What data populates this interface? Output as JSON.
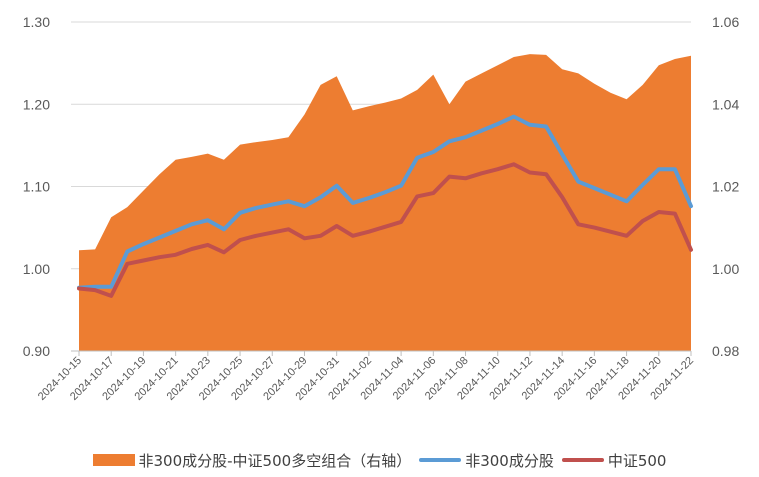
{
  "chart_data": {
    "type": "line",
    "title": "",
    "x": [
      "2024-10-15",
      "2024-10-16",
      "2024-10-17",
      "2024-10-18",
      "2024-10-19",
      "2024-10-20",
      "2024-10-21",
      "2024-10-22",
      "2024-10-23",
      "2024-10-24",
      "2024-10-25",
      "2024-10-26",
      "2024-10-27",
      "2024-10-28",
      "2024-10-29",
      "2024-10-30",
      "2024-10-31",
      "2024-11-01",
      "2024-11-02",
      "2024-11-03",
      "2024-11-04",
      "2024-11-05",
      "2024-11-06",
      "2024-11-07",
      "2024-11-08",
      "2024-11-09",
      "2024-11-10",
      "2024-11-11",
      "2024-11-12",
      "2024-11-13",
      "2024-11-14",
      "2024-11-15",
      "2024-11-16",
      "2024-11-17",
      "2024-11-18",
      "2024-11-19",
      "2024-11-20",
      "2024-11-21",
      "2024-11-22"
    ],
    "x_tick_labels": [
      "2024-10-15",
      "2024-10-17",
      "2024-10-19",
      "2024-10-21",
      "2024-10-23",
      "2024-10-25",
      "2024-10-27",
      "2024-10-29",
      "2024-10-31",
      "2024-11-02",
      "2024-11-04",
      "2024-11-06",
      "2024-11-08",
      "2024-11-10",
      "2024-11-12",
      "2024-11-14",
      "2024-11-16",
      "2024-11-18",
      "2024-11-20",
      "2024-11-22"
    ],
    "y_left": {
      "ylim": [
        0.9,
        1.3
      ],
      "ticks": [
        "0.90",
        "1.00",
        "1.10",
        "1.20",
        "1.30"
      ]
    },
    "y_right": {
      "ylim": [
        0.98,
        1.06
      ],
      "ticks": [
        "0.98",
        "1.00",
        "1.02",
        "1.04",
        "1.06"
      ]
    },
    "series": [
      {
        "name": "非300成分股-中证500多空组合（右轴）",
        "type": "area",
        "axis": "right",
        "color": "#ED7D31",
        "values": [
          1.0045,
          1.0047,
          1.0125,
          1.015,
          1.019,
          1.023,
          1.0265,
          1.0272,
          1.028,
          1.0265,
          1.0302,
          1.0308,
          1.0313,
          1.032,
          1.0375,
          1.0447,
          1.0468,
          1.0385,
          1.0395,
          1.0404,
          1.0414,
          1.0435,
          1.0472,
          1.04,
          1.0455,
          1.0475,
          1.0495,
          1.0515,
          1.0522,
          1.052,
          1.0485,
          1.0475,
          1.045,
          1.0428,
          1.0412,
          1.0447,
          1.0495,
          1.051,
          1.0518
        ]
      },
      {
        "name": "非300成分股",
        "type": "line",
        "axis": "left",
        "color": "#5B9BD5",
        "values": [
          0.977,
          0.978,
          0.978,
          1.021,
          1.03,
          1.038,
          1.046,
          1.054,
          1.059,
          1.048,
          1.068,
          1.074,
          1.078,
          1.082,
          1.076,
          1.087,
          1.101,
          1.08,
          1.086,
          1.093,
          1.101,
          1.135,
          1.142,
          1.155,
          1.16,
          1.168,
          1.176,
          1.185,
          1.175,
          1.173,
          1.139,
          1.106,
          1.098,
          1.09,
          1.082,
          1.102,
          1.121,
          1.121,
          1.076
        ]
      },
      {
        "name": "中证500",
        "type": "line",
        "axis": "left",
        "color": "#C0504D",
        "values": [
          0.976,
          0.974,
          0.967,
          1.006,
          1.01,
          1.014,
          1.017,
          1.024,
          1.029,
          1.02,
          1.035,
          1.04,
          1.044,
          1.048,
          1.037,
          1.04,
          1.052,
          1.04,
          1.045,
          1.051,
          1.057,
          1.088,
          1.092,
          1.112,
          1.11,
          1.116,
          1.121,
          1.127,
          1.117,
          1.115,
          1.087,
          1.054,
          1.05,
          1.045,
          1.04,
          1.058,
          1.069,
          1.067,
          1.023
        ]
      }
    ],
    "legend": {
      "position": "bottom"
    },
    "grid": {
      "horizontal": true,
      "vertical": false
    }
  }
}
